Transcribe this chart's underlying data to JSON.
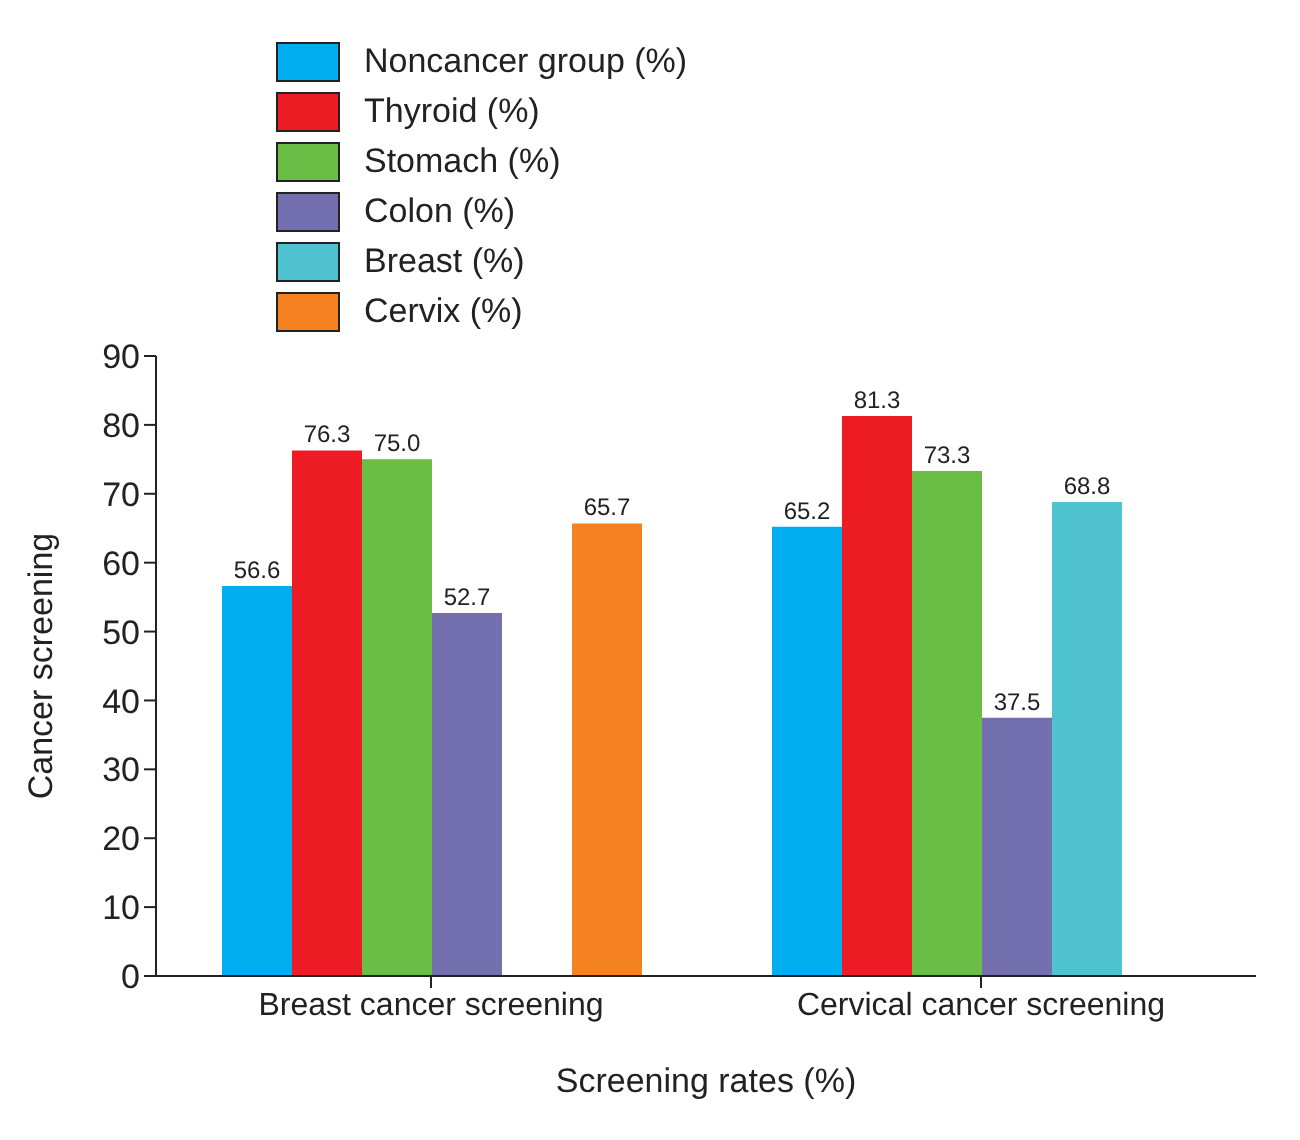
{
  "chart_data": {
    "type": "bar",
    "xlabel": "Screening rates (%)",
    "ylabel": "Cancer screening",
    "categories": [
      "Breast cancer screening",
      "Cervical cancer screening"
    ],
    "series": [
      {
        "name": "Noncancer group (%)",
        "color": "#00aeef",
        "values": [
          56.6,
          65.2
        ],
        "value_labels": [
          "56.6",
          "65.2"
        ]
      },
      {
        "name": "Thyroid (%)",
        "color": "#ed1c24",
        "values": [
          76.3,
          81.3
        ],
        "value_labels": [
          "76.3",
          "81.3"
        ]
      },
      {
        "name": "Stomach (%)",
        "color": "#6abd45",
        "values": [
          75.0,
          73.3
        ],
        "value_labels": [
          "75.0",
          "73.3"
        ]
      },
      {
        "name": "Colon (%)",
        "color": "#7470b0",
        "values": [
          52.7,
          37.5
        ],
        "value_labels": [
          "52.7",
          "37.5"
        ]
      },
      {
        "name": "Breast (%)",
        "color": "#4fc3cf",
        "values": [
          null,
          68.8
        ],
        "value_labels": [
          null,
          "68.8"
        ]
      },
      {
        "name": "Cervix (%)",
        "color": "#f58220",
        "values": [
          65.7,
          null
        ],
        "value_labels": [
          "65.7",
          null
        ]
      }
    ],
    "ylim": [
      0,
      90
    ],
    "yticks": [
      0,
      10,
      20,
      30,
      40,
      50,
      60,
      70,
      80,
      90
    ],
    "grid": false,
    "legend": "top left"
  }
}
